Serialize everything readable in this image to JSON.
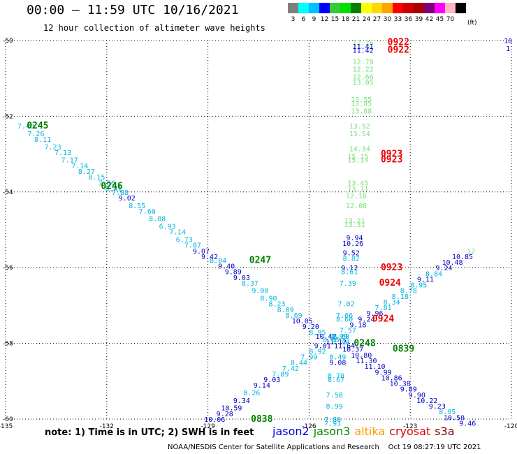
{
  "header": {
    "title": "00:00 — 11:59 UTC 10/16/2021",
    "subtitle": "12 hour collection of altimeter wave heights"
  },
  "legend": {
    "unit": "(ft)",
    "bins": [
      {
        "label": "3",
        "color": "#7f7f7f"
      },
      {
        "label": "6",
        "color": "#00ffff"
      },
      {
        "label": "9",
        "color": "#00bfff"
      },
      {
        "label": "12",
        "color": "#0000ff"
      },
      {
        "label": "15",
        "color": "#32cd32"
      },
      {
        "label": "18",
        "color": "#00e000"
      },
      {
        "label": "21",
        "color": "#008000"
      },
      {
        "label": "24",
        "color": "#ffff00"
      },
      {
        "label": "27",
        "color": "#ffd700"
      },
      {
        "label": "30",
        "color": "#ffa500"
      },
      {
        "label": "33",
        "color": "#ff0000"
      },
      {
        "label": "36",
        "color": "#cc0000"
      },
      {
        "label": "39",
        "color": "#aa0000"
      },
      {
        "label": "42",
        "color": "#800080"
      },
      {
        "label": "45",
        "color": "#ff00ff"
      },
      {
        "label": "70",
        "color": "#ffb6c1"
      },
      {
        "label": "",
        "color": "#000000"
      }
    ]
  },
  "note": "note: 1) Time is in UTC; 2) SWH is in feet",
  "satellites": [
    {
      "name": "jason2",
      "color": "#0000dd"
    },
    {
      "name": "jason3",
      "color": "#008800"
    },
    {
      "name": "altika",
      "color": "#ff9900"
    },
    {
      "name": "cryosat",
      "color": "#dd0000"
    },
    {
      "name": "s3a",
      "color": "#880000"
    }
  ],
  "footer": "NOAA/NESDIS Center for Satellite Applications and Research    Oct 19 08:27:19 UTC 2021",
  "chart_data": {
    "type": "scatter",
    "xlim": [
      -135,
      -120
    ],
    "ylim": [
      -60,
      -50
    ],
    "x_ticks": [
      "-135",
      "-132",
      "-129",
      "-126",
      "-123",
      "-120"
    ],
    "y_ticks": [
      "-50",
      "-52",
      "-54",
      "-56",
      "-58",
      "-60"
    ],
    "grid": true,
    "colors": {
      "cyan": "#00b4e0",
      "blue": "#0000cc",
      "green": "#7ae07a",
      "dkgreen": "#008000",
      "red": "#ee0000"
    },
    "points": [
      {
        "x": -134.4,
        "y": -52.25,
        "v": "7.40",
        "c": "cyan"
      },
      {
        "x": -134.1,
        "y": -52.45,
        "v": "7.26",
        "c": "cyan"
      },
      {
        "x": -133.9,
        "y": -52.6,
        "v": "8.11",
        "c": "cyan"
      },
      {
        "x": -133.6,
        "y": -52.8,
        "v": "7.23",
        "c": "cyan"
      },
      {
        "x": -133.3,
        "y": -52.95,
        "v": "7.13",
        "c": "cyan"
      },
      {
        "x": -133.1,
        "y": -53.15,
        "v": "7.17",
        "c": "cyan"
      },
      {
        "x": -132.8,
        "y": -53.3,
        "v": "7.14",
        "c": "cyan"
      },
      {
        "x": -132.6,
        "y": -53.45,
        "v": "8.27",
        "c": "cyan"
      },
      {
        "x": -132.3,
        "y": -53.6,
        "v": "8.15",
        "c": "cyan"
      },
      {
        "x": -132.0,
        "y": -53.75,
        "v": "7.86",
        "c": "cyan"
      },
      {
        "x": -131.8,
        "y": -53.9,
        "v": "8.41",
        "c": "cyan"
      },
      {
        "x": -131.6,
        "y": -54.0,
        "v": "7.88",
        "c": "cyan"
      },
      {
        "x": -131.4,
        "y": -54.15,
        "v": "9.02",
        "c": "blue"
      },
      {
        "x": -131.1,
        "y": -54.35,
        "v": "8.55",
        "c": "cyan"
      },
      {
        "x": -130.8,
        "y": -54.5,
        "v": "7.60",
        "c": "cyan"
      },
      {
        "x": -130.5,
        "y": -54.7,
        "v": "8.08",
        "c": "cyan"
      },
      {
        "x": -130.2,
        "y": -54.9,
        "v": "6.93",
        "c": "cyan"
      },
      {
        "x": -129.9,
        "y": -55.05,
        "v": "7.14",
        "c": "cyan"
      },
      {
        "x": -129.7,
        "y": -55.25,
        "v": "6.73",
        "c": "cyan"
      },
      {
        "x": -129.45,
        "y": -55.4,
        "v": "7.87",
        "c": "cyan"
      },
      {
        "x": -129.2,
        "y": -55.55,
        "v": "9.07",
        "c": "blue"
      },
      {
        "x": -128.95,
        "y": -55.7,
        "v": "9.42",
        "c": "blue"
      },
      {
        "x": -128.7,
        "y": -55.8,
        "v": "8.84",
        "c": "cyan"
      },
      {
        "x": -128.45,
        "y": -55.95,
        "v": "9.40",
        "c": "blue"
      },
      {
        "x": -128.25,
        "y": -56.1,
        "v": "9.89",
        "c": "blue"
      },
      {
        "x": -128.0,
        "y": -56.25,
        "v": "9.03",
        "c": "blue"
      },
      {
        "x": -127.75,
        "y": -56.4,
        "v": "8.37",
        "c": "cyan"
      },
      {
        "x": -127.45,
        "y": -56.6,
        "v": "9.00",
        "c": "cyan"
      },
      {
        "x": -127.2,
        "y": -56.8,
        "v": "8.90",
        "c": "cyan"
      },
      {
        "x": -126.95,
        "y": -56.95,
        "v": "8.23",
        "c": "cyan"
      },
      {
        "x": -126.7,
        "y": -57.1,
        "v": "8.09",
        "c": "cyan"
      },
      {
        "x": -126.45,
        "y": -57.25,
        "v": "8.69",
        "c": "cyan"
      },
      {
        "x": -126.2,
        "y": -57.4,
        "v": "10.05",
        "c": "blue"
      },
      {
        "x": -125.95,
        "y": -57.55,
        "v": "9.20",
        "c": "blue"
      },
      {
        "x": -125.75,
        "y": -57.7,
        "v": "8.95",
        "c": "cyan"
      },
      {
        "x": -125.5,
        "y": -57.8,
        "v": "10.42",
        "c": "blue"
      },
      {
        "x": -125.2,
        "y": -57.95,
        "v": "11.12",
        "c": "blue"
      },
      {
        "x": -124.95,
        "y": -58.05,
        "v": "11.64",
        "c": "blue"
      },
      {
        "x": -124.7,
        "y": -58.15,
        "v": "10.37",
        "c": "blue"
      },
      {
        "x": -124.45,
        "y": -58.3,
        "v": "10.80",
        "c": "blue"
      },
      {
        "x": -124.3,
        "y": -58.45,
        "v": "11.30",
        "c": "blue"
      },
      {
        "x": -124.05,
        "y": -58.6,
        "v": "11.10",
        "c": "blue"
      },
      {
        "x": -123.8,
        "y": -58.75,
        "v": "9.99",
        "c": "blue"
      },
      {
        "x": -123.55,
        "y": -58.9,
        "v": "10.86",
        "c": "blue"
      },
      {
        "x": -123.3,
        "y": -59.05,
        "v": "10.38",
        "c": "blue"
      },
      {
        "x": -123.05,
        "y": -59.2,
        "v": "9.89",
        "c": "blue"
      },
      {
        "x": -122.8,
        "y": -59.35,
        "v": "9.90",
        "c": "blue"
      },
      {
        "x": -122.5,
        "y": -59.5,
        "v": "10.22",
        "c": "blue"
      },
      {
        "x": -122.2,
        "y": -59.65,
        "v": "9.23",
        "c": "blue"
      },
      {
        "x": -121.9,
        "y": -59.8,
        "v": "8.95",
        "c": "cyan"
      },
      {
        "x": -121.7,
        "y": -59.95,
        "v": "10.50",
        "c": "blue"
      },
      {
        "x": -121.3,
        "y": -60.1,
        "v": "9.46",
        "c": "blue"
      },
      {
        "x": -128.8,
        "y": -60.0,
        "v": "10.06",
        "c": "blue"
      },
      {
        "x": -128.5,
        "y": -59.85,
        "v": "9.28",
        "c": "blue"
      },
      {
        "x": -128.3,
        "y": -59.7,
        "v": "10.59",
        "c": "blue"
      },
      {
        "x": -128.0,
        "y": -59.5,
        "v": "9.34",
        "c": "blue"
      },
      {
        "x": -127.7,
        "y": -59.3,
        "v": "8.26",
        "c": "cyan"
      },
      {
        "x": -127.4,
        "y": -59.1,
        "v": "9.14",
        "c": "blue"
      },
      {
        "x": -127.1,
        "y": -58.95,
        "v": "9.03",
        "c": "blue"
      },
      {
        "x": -126.85,
        "y": -58.8,
        "v": "7.89",
        "c": "cyan"
      },
      {
        "x": -126.55,
        "y": -58.65,
        "v": "7.42",
        "c": "cyan"
      },
      {
        "x": -126.3,
        "y": -58.5,
        "v": "8.44",
        "c": "cyan"
      },
      {
        "x": -126.0,
        "y": -58.35,
        "v": "7.99",
        "c": "cyan"
      },
      {
        "x": -125.75,
        "y": -58.2,
        "v": "8.92",
        "c": "cyan"
      },
      {
        "x": -125.6,
        "y": -58.05,
        "v": "9.01",
        "c": "blue"
      },
      {
        "x": -125.35,
        "y": -57.9,
        "v": "8.85",
        "c": "cyan"
      },
      {
        "x": -125.1,
        "y": -57.8,
        "v": "8.99",
        "c": "cyan"
      },
      {
        "x": -124.85,
        "y": -57.65,
        "v": "7.57",
        "c": "cyan"
      },
      {
        "x": -124.55,
        "y": -57.5,
        "v": "9.18",
        "c": "blue"
      },
      {
        "x": -124.3,
        "y": -57.35,
        "v": "9.24",
        "c": "blue"
      },
      {
        "x": -124.05,
        "y": -57.2,
        "v": "9.96",
        "c": "blue"
      },
      {
        "x": -123.8,
        "y": -57.05,
        "v": "7.81",
        "c": "cyan"
      },
      {
        "x": -123.55,
        "y": -56.9,
        "v": "8.34",
        "c": "cyan"
      },
      {
        "x": -123.3,
        "y": -56.75,
        "v": "8.18",
        "c": "cyan"
      },
      {
        "x": -123.05,
        "y": -56.6,
        "v": "8.78",
        "c": "cyan"
      },
      {
        "x": -122.75,
        "y": -56.45,
        "v": "8.95",
        "c": "cyan"
      },
      {
        "x": -122.55,
        "y": -56.3,
        "v": "9.11",
        "c": "blue"
      },
      {
        "x": -122.3,
        "y": -56.15,
        "v": "8.84",
        "c": "cyan"
      },
      {
        "x": -122.0,
        "y": -56.0,
        "v": "9.24",
        "c": "blue"
      },
      {
        "x": -121.75,
        "y": -55.85,
        "v": "10.48",
        "c": "blue"
      },
      {
        "x": -121.45,
        "y": -55.7,
        "v": "10.85",
        "c": "blue"
      },
      {
        "x": -121.2,
        "y": -55.55,
        "v": "12",
        "c": "green"
      },
      {
        "x": -124.4,
        "y": -50.05,
        "v": "12.26",
        "c": "green"
      },
      {
        "x": -124.4,
        "y": -50.15,
        "v": "11.41",
        "c": "blue"
      },
      {
        "x": -124.4,
        "y": -50.25,
        "v": "11.42",
        "c": "blue"
      },
      {
        "x": -124.4,
        "y": -50.55,
        "v": "12.79",
        "c": "green"
      },
      {
        "x": -124.4,
        "y": -50.75,
        "v": "12.22",
        "c": "green"
      },
      {
        "x": -124.4,
        "y": -50.95,
        "v": "12.66",
        "c": "green"
      },
      {
        "x": -124.4,
        "y": -51.1,
        "v": "13.05",
        "c": "green"
      },
      {
        "x": -124.45,
        "y": -51.55,
        "v": "13.55",
        "c": "green"
      },
      {
        "x": -124.45,
        "y": -51.65,
        "v": "13.85",
        "c": "green"
      },
      {
        "x": -124.45,
        "y": -51.85,
        "v": "13.88",
        "c": "green"
      },
      {
        "x": -124.5,
        "y": -52.25,
        "v": "13.92",
        "c": "green"
      },
      {
        "x": -124.5,
        "y": -52.45,
        "v": "13.54",
        "c": "green"
      },
      {
        "x": -124.5,
        "y": -52.85,
        "v": "14.34",
        "c": "green"
      },
      {
        "x": -124.55,
        "y": -53.05,
        "v": "15.15",
        "c": "green"
      },
      {
        "x": -124.55,
        "y": -53.15,
        "v": "15.14",
        "c": "green"
      },
      {
        "x": -124.55,
        "y": -53.75,
        "v": "13.45",
        "c": "green"
      },
      {
        "x": -124.55,
        "y": -53.9,
        "v": "13.11",
        "c": "green"
      },
      {
        "x": -124.6,
        "y": -54.1,
        "v": "12.18",
        "c": "green"
      },
      {
        "x": -124.6,
        "y": -54.35,
        "v": "12.08",
        "c": "green"
      },
      {
        "x": -124.65,
        "y": -54.75,
        "v": "13.21",
        "c": "green"
      },
      {
        "x": -124.65,
        "y": -54.85,
        "v": "13.31",
        "c": "green"
      },
      {
        "x": -124.65,
        "y": -55.2,
        "v": "9.94",
        "c": "blue"
      },
      {
        "x": -124.7,
        "y": -55.35,
        "v": "10.26",
        "c": "blue"
      },
      {
        "x": -124.75,
        "y": -55.6,
        "v": "9.52",
        "c": "blue"
      },
      {
        "x": -124.75,
        "y": -55.75,
        "v": "8.82",
        "c": "cyan"
      },
      {
        "x": -124.8,
        "y": -56.0,
        "v": "9.12",
        "c": "blue"
      },
      {
        "x": -124.8,
        "y": -56.1,
        "v": "8.61",
        "c": "cyan"
      },
      {
        "x": -124.85,
        "y": -56.4,
        "v": "7.39",
        "c": "cyan"
      },
      {
        "x": -124.9,
        "y": -56.95,
        "v": "7.02",
        "c": "cyan"
      },
      {
        "x": -124.95,
        "y": -57.25,
        "v": "7.66",
        "c": "cyan"
      },
      {
        "x": -124.95,
        "y": -57.35,
        "v": "8.60",
        "c": "cyan"
      },
      {
        "x": -125.05,
        "y": -57.8,
        "v": "8.60",
        "c": "cyan"
      },
      {
        "x": -125.05,
        "y": -57.95,
        "v": "7.94",
        "c": "cyan"
      },
      {
        "x": -125.15,
        "y": -58.35,
        "v": "8.49",
        "c": "cyan"
      },
      {
        "x": -125.15,
        "y": -58.5,
        "v": "9.08",
        "c": "blue"
      },
      {
        "x": -125.2,
        "y": -58.85,
        "v": "8.70",
        "c": "cyan"
      },
      {
        "x": -125.2,
        "y": -58.95,
        "v": "8.67",
        "c": "cyan"
      },
      {
        "x": -125.25,
        "y": -59.35,
        "v": "7.58",
        "c": "cyan"
      },
      {
        "x": -125.25,
        "y": -59.65,
        "v": "8.99",
        "c": "cyan"
      },
      {
        "x": -125.3,
        "y": -60.0,
        "v": "7.80",
        "c": "cyan"
      },
      {
        "x": -125.3,
        "y": -60.1,
        "v": "7.93",
        "c": "cyan"
      },
      {
        "x": -120.1,
        "y": -50.0,
        "v": "10",
        "c": "blue"
      },
      {
        "x": -120.1,
        "y": -50.2,
        "v": "1",
        "c": "blue"
      },
      {
        "x": -134.05,
        "y": -52.25,
        "v": "0245",
        "c": "dkgreen",
        "tag": true
      },
      {
        "x": -131.85,
        "y": -53.85,
        "v": "0246",
        "c": "dkgreen",
        "tag": true
      },
      {
        "x": -127.45,
        "y": -55.8,
        "v": "0247",
        "c": "dkgreen",
        "tag": true
      },
      {
        "x": -124.35,
        "y": -58.0,
        "v": "0248",
        "c": "dkgreen",
        "tag": true
      },
      {
        "x": -123.2,
        "y": -58.15,
        "v": "0839",
        "c": "dkgreen",
        "tag": true
      },
      {
        "x": -127.4,
        "y": -60.0,
        "v": "0838",
        "c": "dkgreen",
        "tag": true
      },
      {
        "x": -123.35,
        "y": -50.05,
        "v": "0922",
        "c": "red",
        "tag": true
      },
      {
        "x": -123.35,
        "y": -50.25,
        "v": "0922",
        "c": "red",
        "tag": true
      },
      {
        "x": -123.55,
        "y": -53.0,
        "v": "0923",
        "c": "red",
        "tag": true
      },
      {
        "x": -123.55,
        "y": -53.15,
        "v": "0923",
        "c": "red",
        "tag": true
      },
      {
        "x": -123.55,
        "y": -56.0,
        "v": "0923",
        "c": "red",
        "tag": true
      },
      {
        "x": -123.6,
        "y": -56.4,
        "v": "0924",
        "c": "red",
        "tag": true
      },
      {
        "x": -123.8,
        "y": -57.35,
        "v": "0924",
        "c": "red",
        "tag": true
      }
    ]
  }
}
